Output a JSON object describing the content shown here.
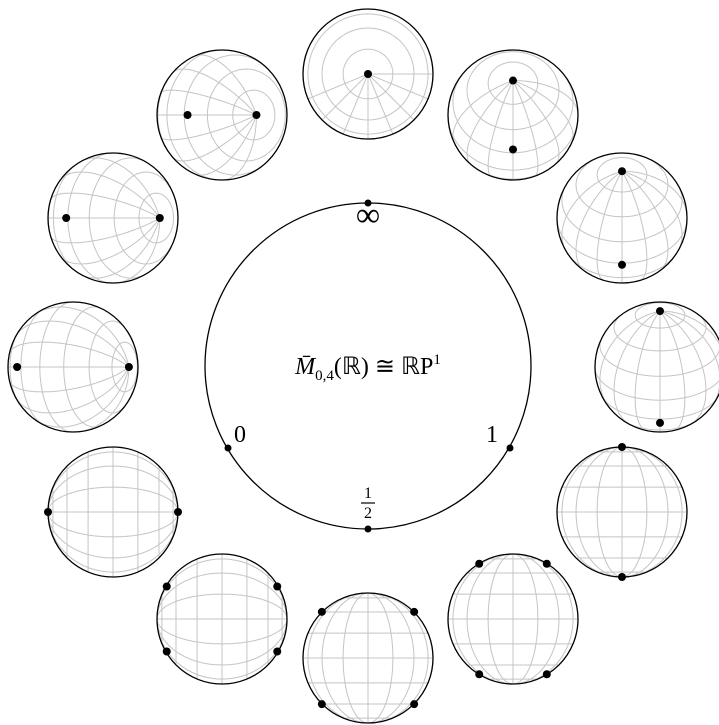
{
  "center_label": {
    "main": "M̄",
    "sub": "0,4",
    "rest": "(ℝ) ≅ ℝP",
    "sup": "1"
  },
  "points": {
    "infinity": "∞",
    "zero": "0",
    "one": "1",
    "half": {
      "numerator": "1",
      "denominator": "2"
    }
  }
}
